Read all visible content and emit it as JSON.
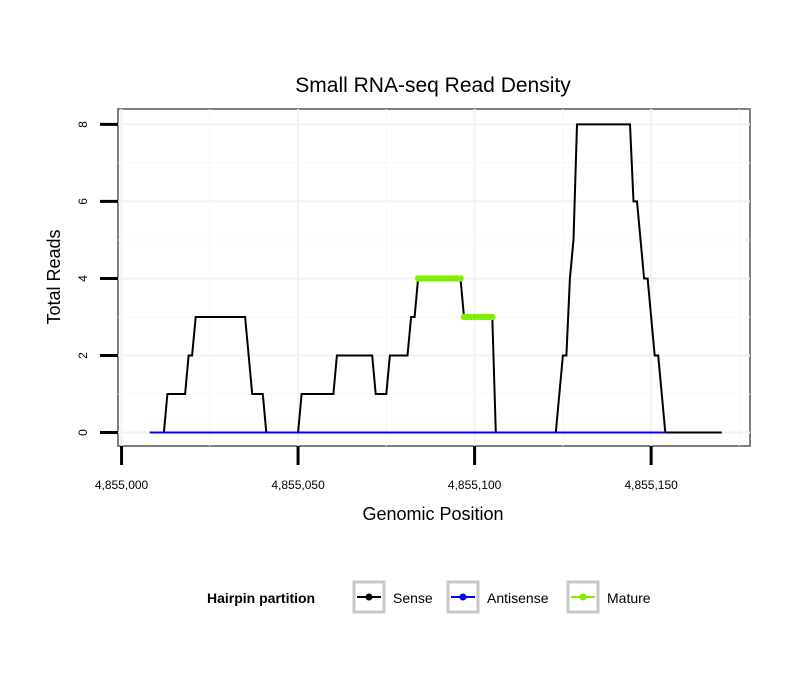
{
  "chart_data": {
    "type": "line",
    "title": "Small RNA-seq Read Density",
    "xlabel": "Genomic Position",
    "ylabel": "Total Reads",
    "xlim": [
      4854999,
      4855178
    ],
    "ylim": [
      -0.35,
      8.4
    ],
    "x_ticks": [
      4855000,
      4855050,
      4855100,
      4855150
    ],
    "x_tick_labels": [
      "4,855,000",
      "4,855,050",
      "4,855,100",
      "4,855,150"
    ],
    "y_ticks": [
      0,
      2,
      4,
      6,
      8
    ],
    "y_tick_labels": [
      "0",
      "2",
      "4",
      "6",
      "8"
    ],
    "grid": true,
    "legend": {
      "title": "Hairpin partition",
      "position": "bottom",
      "entries": [
        {
          "name": "Sense",
          "color": "#000000"
        },
        {
          "name": "Antisense",
          "color": "#0000ff"
        },
        {
          "name": "Mature",
          "color": "#80ee00"
        }
      ]
    },
    "series": [
      {
        "name": "Sense",
        "color": "#000000",
        "points": [
          [
            4855008,
            0
          ],
          [
            4855012,
            0
          ],
          [
            4855013,
            1
          ],
          [
            4855018,
            1
          ],
          [
            4855019,
            2
          ],
          [
            4855020,
            2
          ],
          [
            4855021,
            3
          ],
          [
            4855035,
            3
          ],
          [
            4855037,
            1
          ],
          [
            4855040,
            1
          ],
          [
            4855041,
            0
          ],
          [
            4855050,
            0
          ],
          [
            4855051,
            1
          ],
          [
            4855060,
            1
          ],
          [
            4855061,
            2
          ],
          [
            4855071,
            2
          ],
          [
            4855072,
            1
          ],
          [
            4855075,
            1
          ],
          [
            4855076,
            2
          ],
          [
            4855081,
            2
          ],
          [
            4855082,
            3
          ],
          [
            4855083,
            3
          ],
          [
            4855084,
            4
          ],
          [
            4855096,
            4
          ],
          [
            4855097,
            3
          ],
          [
            4855105,
            3
          ],
          [
            4855106,
            0
          ],
          [
            4855123,
            0
          ],
          [
            4855125,
            2
          ],
          [
            4855126,
            2
          ],
          [
            4855127,
            4
          ],
          [
            4855128,
            5
          ],
          [
            4855129,
            8
          ],
          [
            4855144,
            8
          ],
          [
            4855145,
            6
          ],
          [
            4855146,
            6
          ],
          [
            4855148,
            4
          ],
          [
            4855149,
            4
          ],
          [
            4855151,
            2
          ],
          [
            4855152,
            2
          ],
          [
            4855154,
            0
          ],
          [
            4855170,
            0
          ]
        ]
      },
      {
        "name": "Antisense",
        "color": "#0000ff",
        "points": [
          [
            4855008,
            0
          ],
          [
            4855154,
            0
          ]
        ]
      },
      {
        "name": "Mature",
        "color": "#80ee00",
        "segments": [
          {
            "x_start": 4855084,
            "x_end": 4855096,
            "y": 4
          },
          {
            "x_start": 4855097,
            "x_end": 4855105,
            "y": 3
          }
        ]
      }
    ]
  }
}
